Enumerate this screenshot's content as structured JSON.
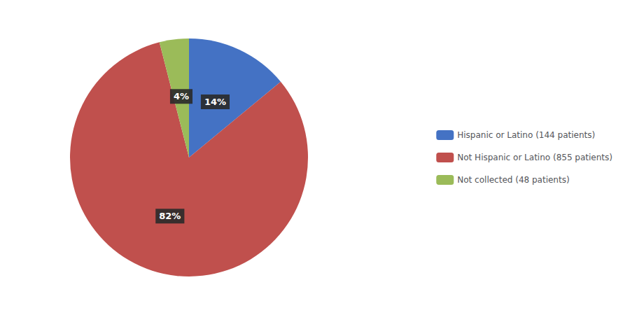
{
  "chart_data": {
    "type": "pie",
    "categories": [
      "Hispanic or Latino (144 patients)",
      "Not Hispanic or Latino (855 patients)",
      "Not collected (48 patients)"
    ],
    "values": [
      14,
      82,
      4
    ],
    "value_labels": [
      "14%",
      "82%",
      "4%"
    ],
    "colors": [
      "#4472C4",
      "#C0504D",
      "#9BBB59"
    ],
    "data_labels": true,
    "legend": "right"
  }
}
